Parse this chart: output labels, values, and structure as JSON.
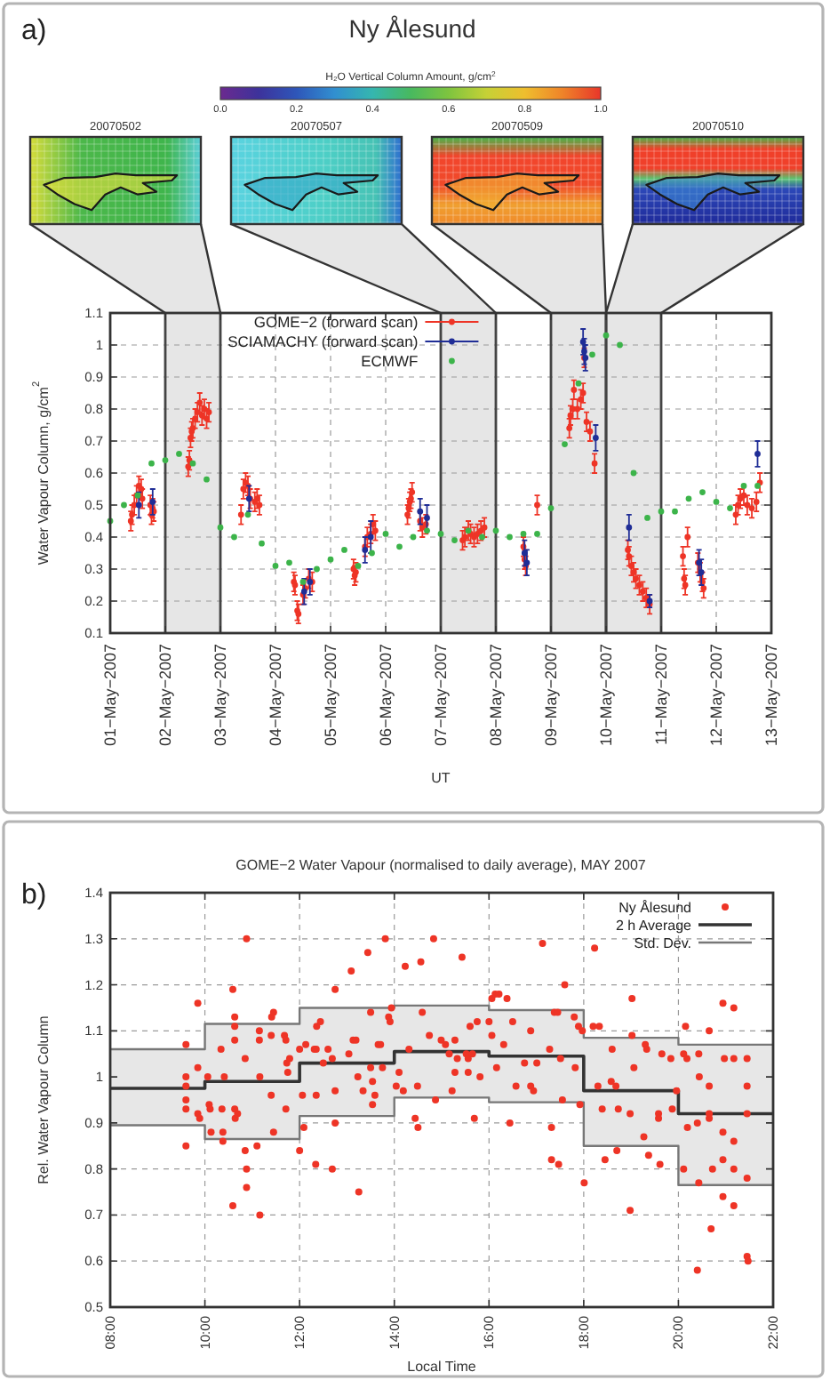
{
  "chart_data": [
    {
      "type": "scatter",
      "title": "Ny Ålesund",
      "xlabel": "UT",
      "ylabel": "Water Vapour Column, g/cm$^{2}$",
      "clabel": "H₂O Vertical Column Amount, g/cm$^{2}$",
      "clim": [
        0,
        1
      ],
      "cticks": [
        {
          "value": 0,
          "label": "0.0"
        },
        0.2,
        0.4,
        0.6,
        0.8,
        {
          "value": 1,
          "label": "1.0"
        }
      ],
      "xlim": [
        "2007-05-01",
        "2007-05-13"
      ],
      "xticks": [
        {
          "value": "2007-05-01",
          "label": "01−May−2007"
        },
        {
          "value": "2007-05-02",
          "label": "02−May−2007"
        },
        {
          "value": "2007-05-03",
          "label": "03−May−2007"
        },
        {
          "value": "2007-05-04",
          "label": "04−May−2007"
        },
        {
          "value": "2007-05-05",
          "label": "05−May−2007"
        },
        {
          "value": "2007-05-06",
          "label": "06−May−2007"
        },
        {
          "value": "2007-05-07",
          "label": "07−May−2007"
        },
        {
          "value": "2007-05-08",
          "label": "08−May−2007"
        },
        {
          "value": "2007-05-09",
          "label": "09−May−2007"
        },
        {
          "value": "2007-05-10",
          "label": "10−May−2007"
        },
        {
          "value": "2007-05-11",
          "label": "11−May−2007"
        },
        {
          "value": "2007-05-12",
          "label": "12−May−2007"
        },
        {
          "value": "2007-05-13",
          "label": "13−May−2007"
        }
      ],
      "ylim": [
        0.1,
        1.1
      ],
      "yticks": [
        0.1,
        0.2,
        0.3,
        0.4,
        0.5,
        0.6,
        0.7,
        0.8,
        0.9,
        1,
        1.1
      ],
      "grid": true,
      "legend": "top left",
      "marker": "circle",
      "bands": [
        {
          "axis": "x",
          "from": "2007-05-02",
          "to": "2007-05-03",
          "color": "#e6e6e6"
        },
        {
          "axis": "x",
          "from": "2007-05-07",
          "to": "2007-05-08",
          "color": "#e6e6e6"
        },
        {
          "axis": "x",
          "from": "2007-05-09",
          "to": "2007-05-10",
          "color": "#e6e6e6"
        },
        {
          "axis": "x",
          "from": "2007-05-10",
          "to": "2007-05-11",
          "color": "#e6e6e6"
        }
      ],
      "annotations": [
        "a)",
        "20070502",
        "20070507",
        "20070509",
        "20070510"
      ],
      "series": [
        {
          "name": "GOME−2 (forward scan)",
          "type": "scatter",
          "color": "#ee3426",
          "x": [
            "2007-05-01T09:00",
            "2007-05-01T09:30",
            "2007-05-01T10:30",
            "2007-05-01T11:30",
            "2007-05-01T12:30",
            "2007-05-01T13:30",
            "2007-05-01T14:00",
            "2007-05-01T17:30",
            "2007-05-01T18:00",
            "2007-05-01T18:30",
            "2007-05-01T19:00",
            "2007-05-02T10:00",
            "2007-05-02T10:30",
            "2007-05-02T11:00",
            "2007-05-02T11:30",
            "2007-05-02T12:00",
            "2007-05-02T13:00",
            "2007-05-02T14:00",
            "2007-05-02T15:00",
            "2007-05-02T16:00",
            "2007-05-02T17:00",
            "2007-05-02T18:00",
            "2007-05-02T19:00",
            "2007-05-03T09:00",
            "2007-05-03T10:00",
            "2007-05-03T11:00",
            "2007-05-03T12:00",
            "2007-05-03T13:00",
            "2007-05-03T15:00",
            "2007-05-03T16:00",
            "2007-05-03T17:00",
            "2007-05-04T08:00",
            "2007-05-04T08:30",
            "2007-05-04T09:30",
            "2007-05-04T10:00",
            "2007-05-04T12:00",
            "2007-05-04T13:00",
            "2007-05-04T14:30",
            "2007-05-04T16:00",
            "2007-05-05T10:00",
            "2007-05-05T10:30",
            "2007-05-05T11:00",
            "2007-05-05T15:00",
            "2007-05-05T16:00",
            "2007-05-05T17:30",
            "2007-05-05T18:30",
            "2007-05-05T19:30",
            "2007-05-06T09:30",
            "2007-05-06T10:00",
            "2007-05-06T10:30",
            "2007-05-06T11:00",
            "2007-05-06T11:30",
            "2007-05-06T15:00",
            "2007-05-06T16:00",
            "2007-05-06T17:30",
            "2007-05-07T09:30",
            "2007-05-07T10:30",
            "2007-05-07T12:00",
            "2007-05-07T13:00",
            "2007-05-07T14:30",
            "2007-05-07T16:00",
            "2007-05-07T17:30",
            "2007-05-07T19:00",
            "2007-05-08T12:00",
            "2007-05-08T12:30",
            "2007-05-08T13:00",
            "2007-05-08T18:00",
            "2007-05-09T08:00",
            "2007-05-09T08:30",
            "2007-05-09T09:30",
            "2007-05-09T10:00",
            "2007-05-09T11:30",
            "2007-05-09T13:00",
            "2007-05-09T14:00",
            "2007-05-09T14:30",
            "2007-05-09T15:30",
            "2007-05-09T17:00",
            "2007-05-09T19:00",
            "2007-05-10T09:30",
            "2007-05-10T10:00",
            "2007-05-10T11:00",
            "2007-05-10T12:00",
            "2007-05-10T13:00",
            "2007-05-10T14:30",
            "2007-05-10T16:00",
            "2007-05-10T17:30",
            "2007-05-10T19:00",
            "2007-05-11T09:30",
            "2007-05-11T10:00",
            "2007-05-11T10:30",
            "2007-05-11T11:30",
            "2007-05-11T16:00",
            "2007-05-11T17:00",
            "2007-05-11T18:00",
            "2007-05-11T18:30",
            "2007-05-12T08:30",
            "2007-05-12T09:30",
            "2007-05-12T10:30",
            "2007-05-12T12:00",
            "2007-05-12T13:30",
            "2007-05-12T15:30",
            "2007-05-12T17:30",
            "2007-05-12T19:00"
          ],
          "values": [
            0.45,
            0.47,
            0.5,
            0.53,
            0.56,
            0.55,
            0.52,
            0.5,
            0.47,
            0.49,
            0.48,
            0.62,
            0.64,
            0.71,
            0.73,
            0.74,
            0.77,
            0.79,
            0.82,
            0.78,
            0.8,
            0.77,
            0.79,
            0.47,
            0.55,
            0.57,
            0.56,
            0.52,
            0.51,
            0.52,
            0.5,
            0.26,
            0.25,
            0.17,
            0.16,
            0.22,
            0.24,
            0.27,
            0.26,
            0.3,
            0.28,
            0.29,
            0.37,
            0.4,
            0.41,
            0.44,
            0.42,
            0.47,
            0.49,
            0.51,
            0.52,
            0.54,
            0.45,
            0.43,
            0.44,
            0.39,
            0.4,
            0.42,
            0.41,
            0.4,
            0.41,
            0.42,
            0.43,
            0.37,
            0.33,
            0.31,
            0.5,
            0.74,
            0.78,
            0.8,
            0.86,
            0.8,
            0.83,
            0.85,
            0.96,
            0.76,
            0.73,
            0.63,
            0.36,
            0.34,
            0.31,
            0.29,
            0.27,
            0.25,
            0.23,
            0.21,
            0.19,
            0.34,
            0.27,
            0.25,
            0.4,
            0.32,
            0.29,
            0.26,
            0.24,
            0.47,
            0.5,
            0.52,
            0.53,
            0.5,
            0.49,
            0.51,
            0.57
          ],
          "errors": [
            0.03,
            0.03,
            0.03,
            0.03,
            0.03,
            0.03,
            0.03,
            0.03,
            0.03,
            0.03,
            0.03,
            0.03,
            0.03,
            0.03,
            0.03,
            0.03,
            0.03,
            0.03,
            0.03,
            0.03,
            0.03,
            0.03,
            0.03,
            0.03,
            0.03,
            0.03,
            0.03,
            0.03,
            0.03,
            0.03,
            0.03,
            0.03,
            0.03,
            0.03,
            0.03,
            0.03,
            0.03,
            0.03,
            0.03,
            0.03,
            0.03,
            0.03,
            0.03,
            0.03,
            0.03,
            0.03,
            0.03,
            0.03,
            0.03,
            0.03,
            0.03,
            0.03,
            0.03,
            0.03,
            0.03,
            0.03,
            0.03,
            0.03,
            0.03,
            0.03,
            0.03,
            0.03,
            0.03,
            0.03,
            0.03,
            0.03,
            0.03,
            0.03,
            0.03,
            0.03,
            0.03,
            0.03,
            0.03,
            0.03,
            0.03,
            0.03,
            0.03,
            0.03,
            0.03,
            0.03,
            0.03,
            0.03,
            0.03,
            0.03,
            0.03,
            0.03,
            0.03,
            0.03,
            0.03,
            0.03,
            0.03,
            0.03,
            0.03,
            0.03,
            0.03,
            0.03,
            0.03,
            0.03,
            0.03,
            0.03,
            0.03,
            0.03,
            0.03
          ]
        },
        {
          "name": "SCIAMACHY (forward scan)",
          "type": "scatter",
          "color": "#1f2d96",
          "x": [
            "2007-05-01T12:30",
            "2007-05-01T18:30",
            "2007-05-03T12:30",
            "2007-05-04T12:30",
            "2007-05-04T15:00",
            "2007-05-05T15:00",
            "2007-05-05T17:30",
            "2007-05-06T15:00",
            "2007-05-06T18:00",
            "2007-05-08T12:30",
            "2007-05-08T13:30",
            "2007-05-09T14:00",
            "2007-05-09T14:30",
            "2007-05-09T15:00",
            "2007-05-09T19:30",
            "2007-05-10T10:00",
            "2007-05-10T19:00",
            "2007-05-11T16:30",
            "2007-05-11T17:30",
            "2007-05-12T18:00"
          ],
          "values": [
            0.5,
            0.51,
            0.52,
            0.23,
            0.26,
            0.36,
            0.4,
            0.48,
            0.46,
            0.35,
            0.32,
            1.01,
            0.98,
            0.96,
            0.71,
            0.43,
            0.2,
            0.32,
            0.29,
            0.66
          ],
          "errors": [
            0.04,
            0.04,
            0.04,
            0.04,
            0.04,
            0.04,
            0.05,
            0.04,
            0.04,
            0.04,
            0.04,
            0.04,
            0.04,
            0.04,
            0.04,
            0.04,
            0.02,
            0.04,
            0.04,
            0.04
          ]
        },
        {
          "name": "ECMWF",
          "type": "scatter",
          "color": "#3cb44a",
          "x": [
            "2007-05-01T00:00",
            "2007-05-01T06:00",
            "2007-05-01T12:00",
            "2007-05-01T18:00",
            "2007-05-02T00:00",
            "2007-05-02T06:00",
            "2007-05-02T12:00",
            "2007-05-02T18:00",
            "2007-05-03T00:00",
            "2007-05-03T06:00",
            "2007-05-03T12:00",
            "2007-05-03T18:00",
            "2007-05-04T00:00",
            "2007-05-04T06:00",
            "2007-05-04T12:00",
            "2007-05-04T18:00",
            "2007-05-05T00:00",
            "2007-05-05T06:00",
            "2007-05-05T12:00",
            "2007-05-05T18:00",
            "2007-05-06T00:00",
            "2007-05-06T06:00",
            "2007-05-06T12:00",
            "2007-05-06T18:00",
            "2007-05-07T00:00",
            "2007-05-07T06:00",
            "2007-05-07T12:00",
            "2007-05-07T18:00",
            "2007-05-08T00:00",
            "2007-05-08T06:00",
            "2007-05-08T12:00",
            "2007-05-08T18:00",
            "2007-05-09T00:00",
            "2007-05-09T06:00",
            "2007-05-09T12:00",
            "2007-05-09T18:00",
            "2007-05-10T00:00",
            "2007-05-10T06:00",
            "2007-05-10T12:00",
            "2007-05-10T18:00",
            "2007-05-11T00:00",
            "2007-05-11T06:00",
            "2007-05-11T12:00",
            "2007-05-11T18:00",
            "2007-05-12T00:00",
            "2007-05-12T06:00",
            "2007-05-12T12:00",
            "2007-05-12T18:00"
          ],
          "values": [
            0.45,
            0.5,
            0.53,
            0.63,
            0.64,
            0.66,
            0.63,
            0.58,
            0.43,
            0.4,
            0.47,
            0.38,
            0.31,
            0.32,
            0.26,
            0.3,
            0.33,
            0.36,
            0.31,
            0.35,
            0.41,
            0.37,
            0.4,
            0.42,
            0.41,
            0.39,
            0.42,
            0.4,
            0.42,
            0.4,
            0.41,
            0.41,
            0.49,
            0.69,
            0.88,
            0.97,
            1.03,
            1.0,
            0.6,
            0.46,
            0.48,
            0.48,
            0.52,
            0.54,
            0.51,
            0.49,
            0.56,
            0.56
          ]
        }
      ]
    },
    {
      "type": "scatter",
      "title": "GOME−2 Water Vapour (normalised to daily average), MAY 2007",
      "xlabel": "Local Time",
      "ylabel": "Rel. Water Vapour Column",
      "xlim": [
        8,
        22
      ],
      "xticks": [
        {
          "value": 8,
          "label": "08:00"
        },
        {
          "value": 10,
          "label": "10:00"
        },
        {
          "value": 12,
          "label": "12:00"
        },
        {
          "value": 14,
          "label": "14:00"
        },
        {
          "value": 16,
          "label": "16:00"
        },
        {
          "value": 18,
          "label": "18:00"
        },
        {
          "value": 20,
          "label": "20:00"
        },
        {
          "value": 22,
          "label": "22:00"
        }
      ],
      "ylim": [
        0.5,
        1.4
      ],
      "yticks": [
        0.5,
        0.6,
        0.7,
        0.8,
        0.9,
        1,
        1.1,
        1.2,
        1.3,
        1.4
      ],
      "grid": true,
      "legend": "top right",
      "annotations": [
        "b)"
      ],
      "series": [
        {
          "name": "Ny Ålesund",
          "type": "scatter",
          "color": "#ee3426",
          "marker": "circle",
          "x": [
            9.6,
            9.6,
            9.6,
            9.6,
            9.6,
            9.6,
            9.85,
            9.85,
            9.85,
            9.89,
            10.06,
            10.09,
            10.11,
            10.13,
            10.34,
            10.36,
            10.38,
            10.38,
            10.41,
            10.59,
            10.63,
            10.63,
            10.63,
            10.63,
            10.64,
            10.59,
            10.69,
            10.85,
            10.85,
            10.88,
            10.88,
            10.88,
            11.1,
            11.15,
            11.15,
            11.16,
            11.16,
            11.41,
            11.45,
            11.4,
            11.4,
            11.45,
            11.68,
            11.71,
            11.73,
            11.75,
            11.71,
            11.79,
            12,
            12,
            12.06,
            12.09,
            12.13,
            12.31,
            12.35,
            12.36,
            12.35,
            12.34,
            12.44,
            12.5,
            12.6,
            12.69,
            12.75,
            12.75,
            12.75,
            12.69,
            13.04,
            13.09,
            13.13,
            13.19,
            13.23,
            13.25,
            13.34,
            13.44,
            13.5,
            13.5,
            13.54,
            13.54,
            13.59,
            13.66,
            13.71,
            13.75,
            13.81,
            13.88,
            13.91,
            13.94,
            14.04,
            14.1,
            14.19,
            14.23,
            14.31,
            14.44,
            14.5,
            14.56,
            14.59,
            14.83,
            14.74,
            14.99,
            15.08,
            15.16,
            15.28,
            15.33,
            15.43,
            15.52,
            15.56,
            15.6,
            15.65,
            15.75,
            15.81,
            14.49,
            14.87,
            15.22,
            15.28,
            15.56,
            15.69,
            16,
            16.06,
            16.13,
            16.21,
            16.38,
            16.06,
            16.31,
            16.5,
            16.16,
            16.44,
            16.57,
            16.75,
            16.88,
            16.88,
            16.94,
            17.01,
            17.13,
            17.28,
            17.32,
            17.32,
            17.47,
            17.38,
            17.45,
            17.51,
            17.6,
            17.8,
            17.55,
            17.82,
            17.89,
            17.92,
            18.01,
            17.97,
            18.2,
            18.23,
            18.33,
            18.3,
            18.39,
            18.45,
            18.6,
            18.58,
            18.68,
            18.7,
            18.73,
            18.98,
            19.02,
            19.02,
            19.06,
            18.98,
            19.27,
            19.3,
            19.33,
            19.37,
            19.58,
            19.58,
            19.65,
            19.84,
            19.61,
            19.87,
            19.96,
            20.11,
            20.15,
            20.11,
            20.18,
            20.19,
            20.4,
            20.43,
            20.44,
            20.4,
            20.43,
            20.65,
            20.65,
            20.65,
            20.65,
            20.69,
            20.72,
            20.94,
            20.97,
            20.94,
            20.94,
            20.94,
            21.17,
            21.17,
            21.17,
            21.17,
            21.17,
            21.45,
            21.45,
            21.45,
            21.45,
            21.45,
            21.47
          ],
          "values": [
            1.07,
            1.0,
            0.98,
            0.95,
            0.93,
            0.85,
            1.16,
            1.02,
            0.92,
            0.91,
            1.0,
            0.94,
            0.93,
            0.88,
            1.06,
            0.93,
            0.88,
            0.86,
            1.0,
            1.19,
            1.13,
            1.11,
            1.08,
            0.93,
            0.91,
            0.72,
            0.92,
            1.04,
            0.84,
            0.8,
            0.76,
            1.3,
            0.85,
            1.1,
            1.08,
            1.0,
            0.7,
            1.13,
            1.14,
            1.09,
            0.96,
            0.88,
            1.09,
            1.08,
            1.03,
            1.01,
            0.93,
            1.04,
            1.06,
            0.84,
            0.96,
            0.89,
            1.07,
            1.06,
            1.06,
            1.11,
            0.96,
            0.81,
            1.12,
            1.03,
            1.06,
            1.04,
            1.19,
            0.97,
            0.9,
            0.8,
            1.05,
            1.23,
            1.08,
            1.08,
            1.0,
            0.75,
            0.97,
            1.27,
            1.14,
            1.02,
            0.99,
            0.94,
            0.96,
            1.07,
            1.07,
            1.02,
            1.3,
            1.13,
            1.12,
            1.15,
            0.98,
            1.01,
            0.97,
            1.24,
            1.06,
            0.91,
            0.89,
            1.25,
            1.14,
            1.3,
            1.09,
            1.08,
            1.07,
            1.05,
            1.08,
            1.04,
            1.26,
            1.05,
            1.04,
            1.11,
            1.05,
            1.12,
            1.0,
            0.98,
            0.95,
            0.97,
            1.01,
            1.01,
            0.91,
            1.12,
            1.17,
            1.18,
            1.18,
            1.17,
            1.09,
            1.07,
            1.12,
            1.02,
            0.9,
            0.98,
            1.03,
            1.1,
            0.98,
            0.97,
            1.03,
            1.29,
            1.06,
            0.89,
            0.82,
            0.81,
            1.14,
            1.14,
            1.04,
            1.2,
            1.13,
            0.95,
            1.02,
            1.11,
            0.94,
            0.77,
            1.1,
            1.11,
            1.28,
            1.11,
            0.98,
            0.93,
            0.82,
            1.06,
            0.99,
            0.98,
            0.84,
            0.93,
            0.71,
            1.17,
            1.09,
            1.02,
            0.92,
            0.87,
            1.07,
            1.06,
            0.83,
            0.92,
            0.91,
            1.05,
            1.04,
            0.81,
            0.93,
            0.97,
            0.8,
            1.11,
            1.05,
            1.04,
            0.89,
            0.58,
            1.05,
            1.0,
            0.9,
            0.77,
            1.1,
            0.98,
            0.92,
            0.91,
            0.67,
            0.8,
            1.16,
            1.04,
            0.88,
            0.82,
            0.74,
            1.15,
            1.04,
            0.86,
            0.8,
            0.72,
            1.04,
            0.98,
            0.92,
            0.78,
            0.61,
            0.6
          ]
        },
        {
          "name": "2 h Average",
          "type": "step",
          "color": "#333333",
          "x": [
            8,
            10,
            12,
            14,
            16,
            18,
            20,
            22
          ],
          "values": [
            0.975,
            0.99,
            1.03,
            1.055,
            1.045,
            0.97,
            0.92,
            0.92
          ],
          "lower": [
            0.895,
            0.865,
            0.915,
            0.955,
            0.945,
            0.85,
            0.765,
            0.765
          ],
          "upper": [
            1.06,
            1.115,
            1.15,
            1.155,
            1.145,
            1.085,
            1.07,
            1.07
          ]
        },
        {
          "name": "Std. Dev.",
          "type": "step",
          "color": "#777777",
          "x": [
            8,
            10,
            12,
            14,
            16,
            18,
            20,
            22
          ],
          "values": [
            1.06,
            1.115,
            1.15,
            1.155,
            1.145,
            1.085,
            1.07,
            1.07
          ]
        },
        {
          "type": "step",
          "color": "#777777",
          "x": [
            8,
            10,
            12,
            14,
            16,
            18,
            20,
            22
          ],
          "values": [
            0.895,
            0.865,
            0.915,
            0.955,
            0.945,
            0.85,
            0.765,
            0.765
          ]
        }
      ]
    }
  ]
}
